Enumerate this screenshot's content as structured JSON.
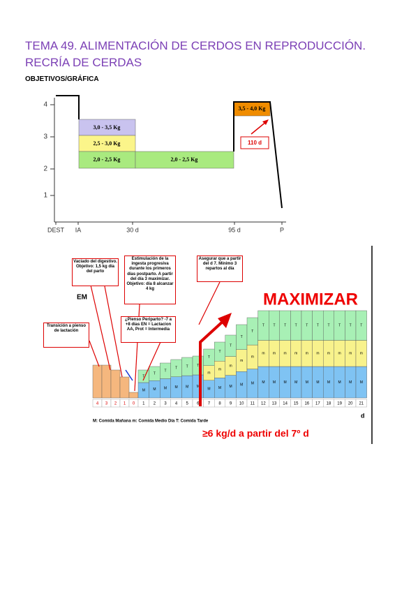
{
  "header": {
    "title": "TEMA 49. ALIMENTACIÓN DE CERDOS EN REPRODUCCIÓN.",
    "subtitle": "RECRÍA DE CERDAS",
    "section": "OBJETIVOS/GRÁFICA"
  },
  "figure1": {
    "y_labels": [
      "4",
      "3",
      "2",
      "1"
    ],
    "x_labels": [
      "DEST",
      "IA",
      "30 d",
      "95 d",
      "P"
    ],
    "boxes": [
      "3,0 - 3,5 Kg",
      "2,5 - 3,0 Kg",
      "2,0 - 2,5 Kg",
      "2,0 - 2,5 Kg",
      "3,5 - 4,0 Kg"
    ],
    "note": "110 d"
  },
  "figure2": {
    "em": "EM",
    "headline": "MAXIMIZAR",
    "callouts": [
      "Transición a pienso de lactación",
      "Vaciado del digestivo. Objetivo: 1,5 kg día del parto",
      "Estimulación de la ingesta progresiva durante los primeros días postparto. A partir del día 3 maximizar. Objetivo: día 8 alcanzar 4 kg",
      "Asegurar que a partir del d 7. Mínimo 3 repartos al día",
      "¿Pienso Periparto? -7 a +8 días EN = Lactacion AA, Prot = Intermedia"
    ],
    "pre_days": [
      "4",
      "3",
      "2",
      "1",
      "0"
    ],
    "days": [
      "1",
      "2",
      "3",
      "4",
      "5",
      "6",
      "7",
      "8",
      "9",
      "10",
      "11",
      "12",
      "13",
      "14",
      "15",
      "16",
      "17",
      "18",
      "19",
      "20",
      "21"
    ],
    "columns": [
      [
        "M",
        "T"
      ],
      [
        "M",
        "T"
      ],
      [
        "M",
        "T"
      ],
      [
        "M",
        "T"
      ],
      [
        "M",
        "T"
      ],
      [
        "M",
        "T"
      ],
      [
        "M",
        "m",
        "T"
      ],
      [
        "M",
        "m",
        "T"
      ],
      [
        "M",
        "m",
        "T"
      ],
      [
        "M",
        "m",
        "T"
      ],
      [
        "M",
        "m",
        "T"
      ],
      [
        "M",
        "m",
        "T"
      ],
      [
        "M",
        "m",
        "T"
      ],
      [
        "M",
        "m",
        "T"
      ],
      [
        "M",
        "m",
        "T"
      ],
      [
        "M",
        "m",
        "T"
      ],
      [
        "M",
        "m",
        "T"
      ],
      [
        "M",
        "m",
        "T"
      ],
      [
        "M",
        "m",
        "T"
      ],
      [
        "M",
        "m",
        "T"
      ],
      [
        "M",
        "m",
        "T"
      ]
    ],
    "legend": "M: Comida Mañana m: Comida Medio Día T: Comida Tarde",
    "unit": "d",
    "footer": "≥6 kg/d a partir del 7º d"
  }
}
